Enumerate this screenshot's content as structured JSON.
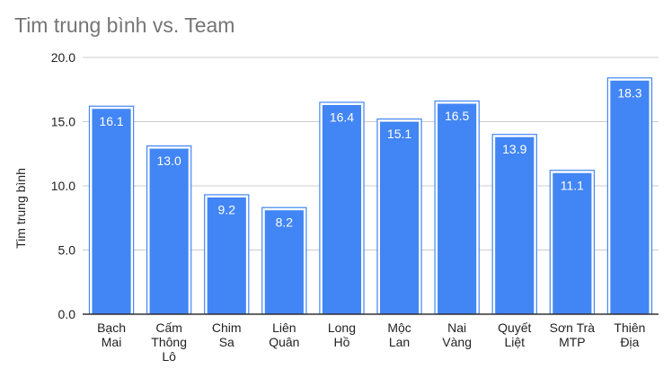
{
  "chart_data": {
    "type": "bar",
    "title": "Tim trung bình vs. Team",
    "ylabel": "Tim trung bình",
    "xlabel": "",
    "categories": [
      [
        "Bạch",
        "Mai"
      ],
      [
        "Cấm",
        "Thông",
        "Lô"
      ],
      [
        "Chim",
        "Sa"
      ],
      [
        "Liên",
        "Quân"
      ],
      [
        "Long",
        "Hồ"
      ],
      [
        "Mộc",
        "Lan"
      ],
      [
        "Nai",
        "Vàng"
      ],
      [
        "Quyết",
        "Liệt"
      ],
      [
        "Sơn Trà",
        "MTP"
      ],
      [
        "Thiên",
        "Địa"
      ]
    ],
    "values": [
      16.1,
      13.0,
      9.2,
      8.2,
      16.4,
      15.1,
      16.5,
      13.9,
      11.1,
      18.3
    ],
    "value_labels": [
      "16.1",
      "13.0",
      "9.2",
      "8.2",
      "16.4",
      "15.1",
      "16.5",
      "13.9",
      "11.1",
      "18.3"
    ],
    "ylim": [
      0,
      20
    ],
    "yticks": [
      "0.0",
      "5.0",
      "10.0",
      "15.0",
      "20.0"
    ],
    "ytick_values": [
      0,
      5,
      10,
      15,
      20
    ],
    "grid": true,
    "bar_color": "#4285f4",
    "bar_outline": "#4285f4"
  }
}
